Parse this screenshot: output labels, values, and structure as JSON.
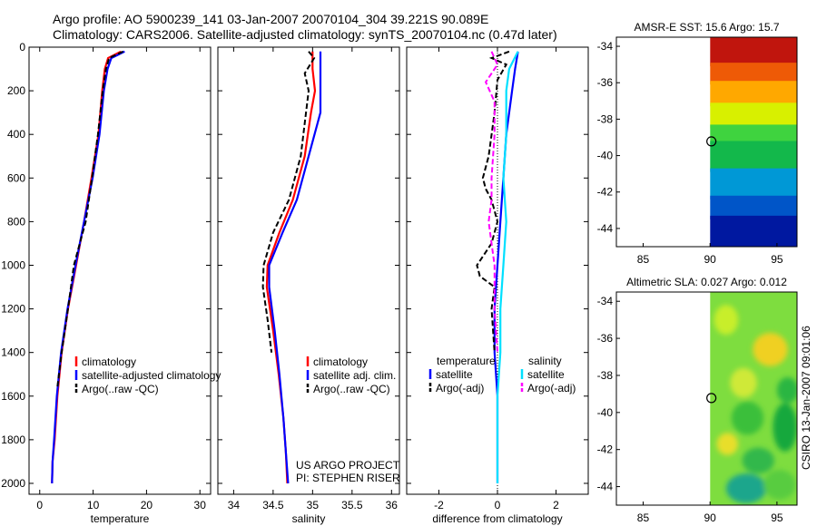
{
  "header": {
    "line1": "Argo profile: AO 5900239_141 03-Jan-2007 20070104_304 39.221S 90.089E",
    "line2": "Climatology: CARS2006. Satellite-adjusted climatology: synTS_20070104.nc (0.47d later)"
  },
  "chart_data": [
    {
      "type": "line",
      "name": "temperature-profile",
      "xlabel": "temperature",
      "ylabel": "",
      "xlim": [
        -2,
        32
      ],
      "ylim": [
        2050,
        0
      ],
      "xticks": [
        "0",
        "10",
        "20",
        "30"
      ],
      "xtick_values": [
        0,
        10,
        20,
        30
      ],
      "yticks": [
        "0",
        "200",
        "400",
        "600",
        "800",
        "1000",
        "1200",
        "1400",
        "1600",
        "1800",
        "2000"
      ],
      "ytick_values": [
        0,
        200,
        400,
        600,
        800,
        1000,
        1200,
        1400,
        1600,
        1800,
        2000
      ],
      "legend": [
        "climatology",
        "satellite-adjusted climatology",
        "Argo(..raw -QC)"
      ],
      "series": [
        {
          "name": "climatology",
          "color": "#ff0000",
          "dash": "solid",
          "x": [
            15.2,
            12.8,
            12.2,
            11.7,
            11.0,
            9.7,
            8.3,
            6.8,
            5.3,
            4.1,
            3.3,
            2.8,
            2.4,
            2.3
          ],
          "y": [
            20,
            50,
            100,
            200,
            400,
            600,
            800,
            1000,
            1200,
            1400,
            1600,
            1800,
            1900,
            2000
          ]
        },
        {
          "name": "satellite-adjusted climatology",
          "color": "#0000ff",
          "dash": "solid",
          "x": [
            15.9,
            13.4,
            12.7,
            12.0,
            11.2,
            9.9,
            8.3,
            6.7,
            5.2,
            4.0,
            3.2,
            2.7,
            2.4,
            2.3
          ],
          "y": [
            20,
            50,
            100,
            200,
            400,
            600,
            800,
            1000,
            1200,
            1400,
            1600,
            1800,
            1900,
            2000
          ]
        },
        {
          "name": "Argo(..raw -QC)",
          "color": "#000000",
          "dash": "dashed",
          "x": [
            15.6,
            13.0,
            12.4,
            11.8,
            10.9,
            9.8,
            8.6,
            6.4,
            5.3,
            4.1,
            3.3
          ],
          "y": [
            20,
            50,
            100,
            200,
            400,
            600,
            800,
            1000,
            1200,
            1400,
            1560
          ]
        }
      ]
    },
    {
      "type": "line",
      "name": "salinity-profile",
      "xlabel": "salinity",
      "xlim": [
        33.8,
        36.1
      ],
      "ylim": [
        2050,
        0
      ],
      "xticks": [
        "34",
        "34.5",
        "35",
        "35.5",
        "36"
      ],
      "xtick_values": [
        34,
        34.5,
        35,
        35.5,
        36
      ],
      "legend": [
        "climatology",
        "satellite adj. clim.",
        "Argo(..raw -QC)"
      ],
      "annotation": [
        "US ARGO PROJECT",
        "PI: STEPHEN RISER"
      ],
      "series": [
        {
          "name": "climatology",
          "color": "#ff0000",
          "dash": "solid",
          "x": [
            35.0,
            35.0,
            35.03,
            34.98,
            34.9,
            34.75,
            34.58,
            34.43,
            34.42,
            34.5,
            34.57,
            34.63,
            34.66,
            34.68
          ],
          "y": [
            20,
            100,
            200,
            300,
            500,
            700,
            850,
            1000,
            1100,
            1300,
            1500,
            1700,
            1850,
            2000
          ]
        },
        {
          "name": "satellite adj. clim.",
          "color": "#0000ff",
          "dash": "solid",
          "x": [
            35.1,
            35.1,
            35.1,
            35.1,
            34.95,
            34.8,
            34.62,
            34.45,
            34.45,
            34.52,
            34.58,
            34.63,
            34.66,
            34.69
          ],
          "y": [
            20,
            100,
            200,
            300,
            500,
            700,
            850,
            1000,
            1100,
            1300,
            1500,
            1700,
            1850,
            2000
          ]
        },
        {
          "name": "Argo(..raw -QC)",
          "color": "#000000",
          "dash": "dashed",
          "x": [
            34.95,
            35.02,
            34.9,
            34.95,
            34.85,
            34.7,
            34.5,
            34.38,
            34.37,
            34.43,
            34.48
          ],
          "y": [
            20,
            50,
            120,
            200,
            500,
            700,
            850,
            1000,
            1100,
            1250,
            1400
          ]
        }
      ]
    },
    {
      "type": "line",
      "name": "difference-profile",
      "xlabel": "difference from climatology",
      "xlim": [
        -3.1,
        3.1
      ],
      "ylim": [
        2050,
        0
      ],
      "xticks": [
        "-2",
        "0",
        "2"
      ],
      "xtick_values": [
        -2,
        0,
        2
      ],
      "legend_temperature_title": "temperature",
      "legend_salinity_title": "salinity",
      "legend": [
        "satellite",
        "Argo(-adj)",
        "satellite",
        "Argo(-adj)"
      ],
      "series": [
        {
          "name": "temperature satellite",
          "color": "#0000ff",
          "dash": "solid",
          "x": [
            0.7,
            0.6,
            0.5,
            0.3,
            0.2,
            0.1,
            0.0,
            -0.1,
            -0.1,
            0.0,
            0.0,
            0.0
          ],
          "y": [
            20,
            100,
            200,
            400,
            600,
            800,
            1000,
            1200,
            1400,
            1600,
            1800,
            2000
          ]
        },
        {
          "name": "temperature Argo(-adj)",
          "color": "#000000",
          "dash": "dashed",
          "x": [
            0.4,
            -0.2,
            0.3,
            0.0,
            -0.1,
            -0.3,
            -0.5,
            -0.4,
            -0.2,
            0.0,
            -0.2,
            -0.7,
            -0.6,
            -0.1,
            -0.2,
            -0.1
          ],
          "y": [
            20,
            50,
            80,
            150,
            300,
            500,
            600,
            650,
            700,
            800,
            900,
            1000,
            1050,
            1100,
            1200,
            1400
          ]
        },
        {
          "name": "salinity satellite",
          "color": "#00e0ff",
          "dash": "solid",
          "x": [
            0.7,
            0.4,
            0.3,
            0.3,
            0.2,
            0.3,
            0.2,
            0.1,
            0.1,
            0.0,
            0.0,
            0.0
          ],
          "y": [
            20,
            100,
            200,
            400,
            600,
            800,
            1000,
            1200,
            1400,
            1600,
            1800,
            2000
          ]
        },
        {
          "name": "salinity Argo(-adj)",
          "color": "#ff00ff",
          "dash": "dashed",
          "x": [
            -0.2,
            0.0,
            -0.4,
            -0.1,
            -0.1,
            -0.2,
            -0.2,
            -0.3,
            -0.2,
            -0.1,
            -0.1,
            0.0
          ],
          "y": [
            20,
            80,
            160,
            250,
            400,
            600,
            700,
            800,
            900,
            1000,
            1200,
            1400
          ]
        }
      ]
    },
    {
      "type": "heatmap",
      "name": "amsr-sst-map",
      "title": "AMSR-E SST: 15.6 Argo: 15.7",
      "xlim": [
        83,
        96.5
      ],
      "ylim": [
        -45,
        -33.5
      ],
      "xticks": [
        "85",
        "90",
        "95"
      ],
      "xtick_values": [
        85,
        90,
        95
      ],
      "yticks": [
        "-34",
        "-36",
        "-38",
        "-40",
        "-42",
        "-44"
      ],
      "ytick_values": [
        -34,
        -36,
        -38,
        -40,
        -42,
        -44
      ],
      "data_xrange": [
        90,
        96.5
      ],
      "bands": [
        {
          "lat": [
            -33.5,
            -35.0
          ],
          "color": "#c0150d"
        },
        {
          "lat": [
            -35.0,
            -36.0
          ],
          "color": "#ee5a06"
        },
        {
          "lat": [
            -36.0,
            -37.2
          ],
          "color": "#ffa800"
        },
        {
          "lat": [
            -37.2,
            -38.4
          ],
          "color": "#d8f000"
        },
        {
          "lat": [
            -38.4,
            -39.3
          ],
          "color": "#3fd33f"
        },
        {
          "lat": [
            -39.3,
            -40.8
          ],
          "color": "#13b84b"
        },
        {
          "lat": [
            -40.8,
            -42.3
          ],
          "color": "#0098d6"
        },
        {
          "lat": [
            -42.3,
            -43.4
          ],
          "color": "#0055c8"
        },
        {
          "lat": [
            -43.4,
            -45.0
          ],
          "color": "#0018a0"
        }
      ],
      "marker": {
        "lon": 90.1,
        "lat": -39.22
      }
    },
    {
      "type": "heatmap",
      "name": "altimetric-sla-map",
      "title": "Altimetric SLA: 0.027 Argo: 0.012",
      "xlim": [
        83,
        96.5
      ],
      "ylim": [
        -45,
        -33.5
      ],
      "xticks": [
        "85",
        "90",
        "95"
      ],
      "xtick_values": [
        85,
        90,
        95
      ],
      "yticks": [
        "-34",
        "-36",
        "-38",
        "-40",
        "-42",
        "-44"
      ],
      "ytick_values": [
        -34,
        -36,
        -38,
        -40,
        -42,
        -44
      ],
      "data_xrange": [
        90,
        96.5
      ],
      "background": "#7edd3f",
      "blobs": [
        {
          "lon": 91.2,
          "lat": -35.0,
          "rx": 0.9,
          "ry": 0.8,
          "color": "#c8ee2a"
        },
        {
          "lon": 94.5,
          "lat": -36.6,
          "rx": 1.3,
          "ry": 0.9,
          "color": "#f0d020"
        },
        {
          "lon": 92.5,
          "lat": -38.4,
          "rx": 1.0,
          "ry": 0.8,
          "color": "#cfe938"
        },
        {
          "lon": 95.8,
          "lat": -38.8,
          "rx": 0.8,
          "ry": 0.7,
          "color": "#2cb642"
        },
        {
          "lon": 92.8,
          "lat": -40.3,
          "rx": 1.2,
          "ry": 0.9,
          "color": "#3bbf3b"
        },
        {
          "lon": 95.6,
          "lat": -40.8,
          "rx": 0.9,
          "ry": 1.3,
          "color": "#18a83e"
        },
        {
          "lon": 91.3,
          "lat": -41.7,
          "rx": 0.8,
          "ry": 0.6,
          "color": "#e8de2c"
        },
        {
          "lon": 93.6,
          "lat": -42.6,
          "rx": 1.2,
          "ry": 0.7,
          "color": "#32b84c"
        },
        {
          "lon": 92.7,
          "lat": -44.1,
          "rx": 1.5,
          "ry": 0.8,
          "color": "#1ba68c"
        },
        {
          "lon": 95.2,
          "lat": -43.9,
          "rx": 1.2,
          "ry": 0.8,
          "color": "#58cc40"
        }
      ],
      "marker": {
        "lon": 90.1,
        "lat": -39.22
      }
    }
  ],
  "side_label": "CSIRO 13-Jan-2007 09:01:06"
}
